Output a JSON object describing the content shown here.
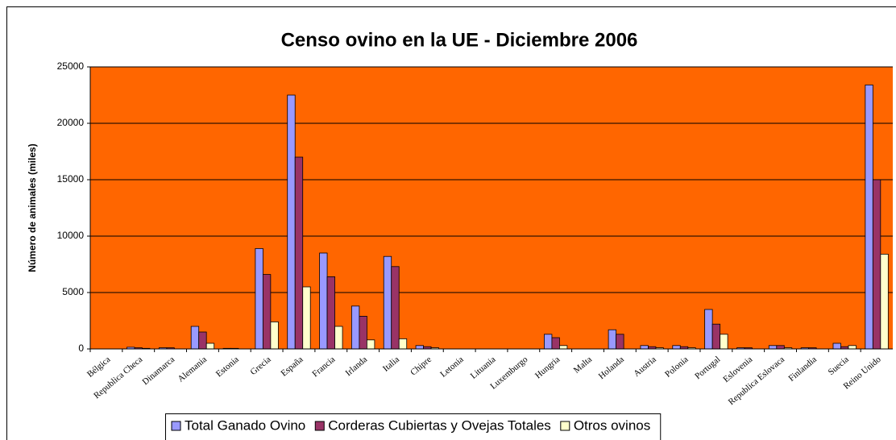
{
  "chart_data": {
    "type": "bar",
    "title": "Censo ovino en la UE - Diciembre 2006",
    "y_label": "Número de animales (miles)",
    "categories": [
      "Bélgica",
      "Republica Checa",
      "Dinamarca",
      "Alemania",
      "Estonia",
      "Grecia",
      "España",
      "Francia",
      "Irlanda",
      "Italia",
      "Chipre",
      "Letonia",
      "Lituania",
      "Luxemburgo",
      "Hungria",
      "Malta",
      "Holanda",
      "Austria",
      "Polonia",
      "Portugal",
      "Eslovenia",
      "Republica Eslovaca",
      "Finlandia",
      "Suecia",
      "Reino Unido"
    ],
    "series": [
      {
        "name": "Total Ganado Ovino",
        "color": "#9999ff",
        "values": [
          0,
          150,
          100,
          2000,
          50,
          8900,
          22500,
          8500,
          3800,
          8200,
          300,
          0,
          0,
          0,
          1300,
          0,
          1700,
          300,
          300,
          3500,
          100,
          300,
          100,
          500,
          23400
        ]
      },
      {
        "name": "Corderas Cubiertas y Ovejas Totales",
        "color": "#993366",
        "values": [
          0,
          100,
          100,
          1500,
          50,
          6600,
          17000,
          6400,
          2900,
          7300,
          200,
          0,
          0,
          0,
          1000,
          0,
          1300,
          200,
          200,
          2200,
          100,
          300,
          100,
          200,
          15000
        ]
      },
      {
        "name": "Otros ovinos",
        "color": "#ffffcc",
        "values": [
          0,
          50,
          0,
          500,
          0,
          2400,
          5500,
          2000,
          800,
          900,
          100,
          0,
          0,
          0,
          300,
          0,
          0,
          100,
          100,
          1300,
          0,
          100,
          0,
          300,
          8400
        ]
      }
    ],
    "ylim": [
      0,
      25000
    ],
    "yticks": [
      0,
      5000,
      10000,
      15000,
      20000,
      25000
    ],
    "grid": true,
    "background": "#ff6600"
  }
}
